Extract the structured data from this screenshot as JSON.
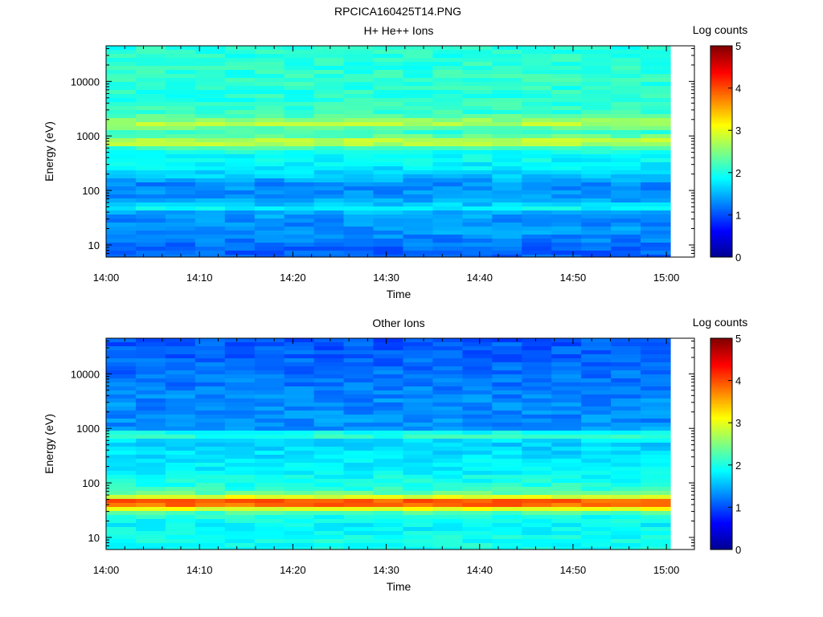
{
  "figure": {
    "title": "RPCICA160425T14.PNG"
  },
  "colormap": [
    "#00008f",
    "#0000ff",
    "#0080ff",
    "#00ffff",
    "#80ff80",
    "#ffff00",
    "#ff8000",
    "#ff0000",
    "#800000"
  ],
  "chart_data": [
    {
      "type": "heatmap",
      "title": "H+ He++ Ions",
      "xlabel": "Time",
      "ylabel": "Energy (eV)",
      "x_tick_labels": [
        "14:00",
        "14:10",
        "14:20",
        "14:30",
        "14:40",
        "14:50",
        "15:00"
      ],
      "x_range": [
        "14:00",
        "15:03"
      ],
      "y_scale": "log",
      "y_tick_labels": [
        "10",
        "100",
        "1000",
        "10000"
      ],
      "y_range": [
        6,
        45000
      ],
      "colorbar": {
        "label": "Log counts",
        "range": [
          0,
          5
        ],
        "tick_labels": [
          "0",
          "1",
          "2",
          "3",
          "4",
          "5"
        ]
      },
      "time_bins": 19,
      "energy_bands_log_counts": [
        {
          "energy": 8,
          "value": 1.1
        },
        {
          "energy": 12,
          "value": 1.25
        },
        {
          "energy": 18,
          "value": 1.4
        },
        {
          "energy": 27,
          "value": 1.3
        },
        {
          "energy": 40,
          "value": 1.5
        },
        {
          "energy": 48,
          "value": 1.95
        },
        {
          "energy": 60,
          "value": 1.45
        },
        {
          "energy": 85,
          "value": 1.35
        },
        {
          "energy": 130,
          "value": 1.3
        },
        {
          "energy": 200,
          "value": 1.7
        },
        {
          "energy": 320,
          "value": 1.85
        },
        {
          "energy": 500,
          "value": 1.95
        },
        {
          "energy": 650,
          "value": 2.3
        },
        {
          "energy": 760,
          "value": 3.1
        },
        {
          "energy": 900,
          "value": 2.5
        },
        {
          "energy": 1200,
          "value": 2.1
        },
        {
          "energy": 1700,
          "value": 2.8
        },
        {
          "energy": 2500,
          "value": 2.15
        },
        {
          "energy": 5000,
          "value": 2.05
        },
        {
          "energy": 12000,
          "value": 2.1
        },
        {
          "energy": 30000,
          "value": 2.05
        }
      ]
    },
    {
      "type": "heatmap",
      "title": "Other Ions",
      "xlabel": "Time",
      "ylabel": "Energy (eV)",
      "x_tick_labels": [
        "14:00",
        "14:10",
        "14:20",
        "14:30",
        "14:40",
        "14:50",
        "15:00"
      ],
      "x_range": [
        "14:00",
        "15:03"
      ],
      "y_scale": "log",
      "y_tick_labels": [
        "10",
        "100",
        "1000",
        "10000"
      ],
      "y_range": [
        6,
        45000
      ],
      "colorbar": {
        "label": "Log counts",
        "range": [
          0,
          5
        ],
        "tick_labels": [
          "0",
          "1",
          "2",
          "3",
          "4",
          "5"
        ]
      },
      "time_bins": 19,
      "energy_bands_log_counts": [
        {
          "energy": 8,
          "value": 1.95
        },
        {
          "energy": 12,
          "value": 1.9
        },
        {
          "energy": 18,
          "value": 1.85
        },
        {
          "energy": 27,
          "value": 2.05
        },
        {
          "energy": 33,
          "value": 3.0
        },
        {
          "energy": 38,
          "value": 3.75
        },
        {
          "energy": 44,
          "value": 4.2
        },
        {
          "energy": 50,
          "value": 3.6
        },
        {
          "energy": 57,
          "value": 2.8
        },
        {
          "energy": 70,
          "value": 2.15
        },
        {
          "energy": 110,
          "value": 1.95
        },
        {
          "energy": 180,
          "value": 1.8
        },
        {
          "energy": 300,
          "value": 1.75
        },
        {
          "energy": 480,
          "value": 1.65
        },
        {
          "energy": 620,
          "value": 1.75
        },
        {
          "energy": 760,
          "value": 2.25
        },
        {
          "energy": 1000,
          "value": 1.35
        },
        {
          "energy": 1600,
          "value": 1.3
        },
        {
          "energy": 3000,
          "value": 1.3
        },
        {
          "energy": 8000,
          "value": 1.2
        },
        {
          "energy": 20000,
          "value": 1.1
        },
        {
          "energy": 40000,
          "value": 1.05
        }
      ]
    }
  ]
}
